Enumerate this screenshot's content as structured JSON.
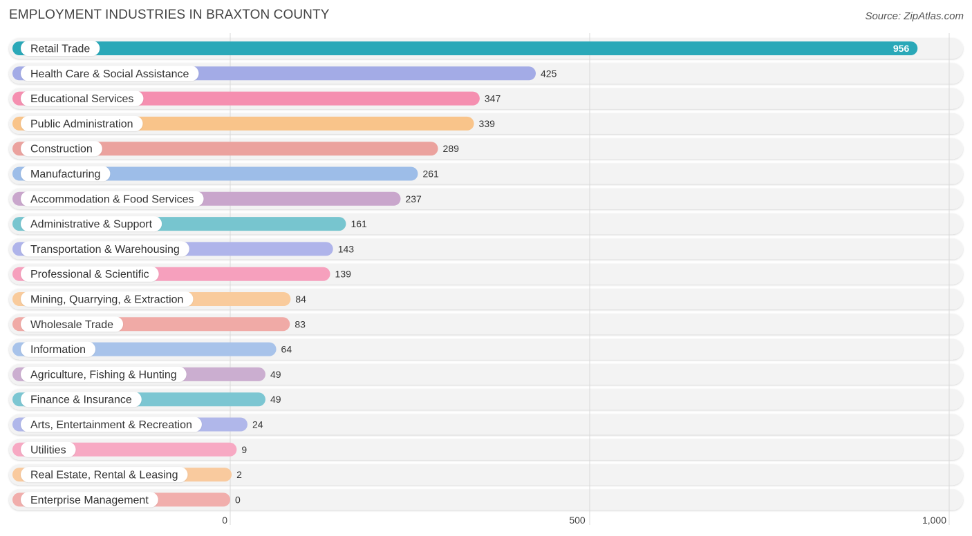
{
  "header": {
    "title": "EMPLOYMENT INDUSTRIES IN BRAXTON COUNTY",
    "source": "Source: ZipAtlas.com"
  },
  "chart_data": {
    "type": "bar",
    "orientation": "horizontal",
    "title": "EMPLOYMENT INDUSTRIES IN BRAXTON COUNTY",
    "xlabel": "",
    "ylabel": "",
    "xlim": [
      0,
      1000
    ],
    "ticks": [
      0,
      500,
      1000
    ],
    "tick_labels": [
      "0",
      "500",
      "1,000"
    ],
    "grid": true,
    "categories": [
      "Retail Trade",
      "Health Care & Social Assistance",
      "Educational Services",
      "Public Administration",
      "Construction",
      "Manufacturing",
      "Accommodation & Food Services",
      "Administrative & Support",
      "Transportation & Warehousing",
      "Professional & Scientific",
      "Mining, Quarrying, & Extraction",
      "Wholesale Trade",
      "Information",
      "Agriculture, Fishing & Hunting",
      "Finance & Insurance",
      "Arts, Entertainment & Recreation",
      "Utilities",
      "Real Estate, Rental & Leasing",
      "Enterprise Management"
    ],
    "values": [
      956,
      425,
      347,
      339,
      289,
      261,
      237,
      161,
      143,
      139,
      84,
      83,
      64,
      49,
      49,
      24,
      9,
      2,
      0
    ],
    "value_labels": [
      "956",
      "425",
      "347",
      "339",
      "289",
      "261",
      "237",
      "161",
      "143",
      "139",
      "84",
      "83",
      "64",
      "49",
      "49",
      "24",
      "9",
      "2",
      "0"
    ],
    "colors": [
      "#2aa8b8",
      "#a3abe6",
      "#f58fb0",
      "#f9c48a",
      "#eba29e",
      "#9dbde8",
      "#c9a6cc",
      "#77c5cf",
      "#afb4ea",
      "#f6a0bd",
      "#f9cb9c",
      "#f0aaa6",
      "#a8c3ea",
      "#cbaed0",
      "#7cc6d2",
      "#b0b7ea",
      "#f7a9c3",
      "#f9ca9e",
      "#f1aeac"
    ]
  }
}
